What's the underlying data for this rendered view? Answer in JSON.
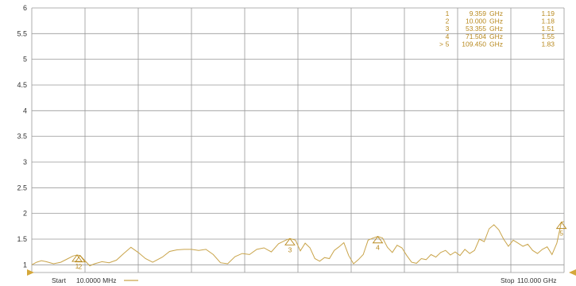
{
  "theme": {
    "trace_color": "#c9a44a",
    "grid_color": "#999999",
    "marker_text_color": "#b8891e",
    "bg": "#ffffff"
  },
  "footer": {
    "start_label": "Start",
    "start_value": "10.0000 MHz",
    "stop_label": "Stop",
    "stop_value": "110.000 GHz"
  },
  "marker_table": [
    {
      "active": "",
      "id": "1",
      "freq": "9.359",
      "unit": "GHz",
      "value": "1.19"
    },
    {
      "active": "",
      "id": "2",
      "freq": "10.000",
      "unit": "GHz",
      "value": "1.18"
    },
    {
      "active": "",
      "id": "3",
      "freq": "53.355",
      "unit": "GHz",
      "value": "1.51"
    },
    {
      "active": "",
      "id": "4",
      "freq": "71.504",
      "unit": "GHz",
      "value": "1.55"
    },
    {
      "active": ">",
      "id": "5",
      "freq": "109.450",
      "unit": "GHz",
      "value": "1.83"
    }
  ],
  "chart_data": {
    "type": "line",
    "xlim": [
      0.01,
      110
    ],
    "ylim": [
      0.85,
      6
    ],
    "y_ticks": [
      "6",
      "5.5",
      "5",
      "4.5",
      "4",
      "3.5",
      "3",
      "2.5",
      "2",
      "1.5",
      "1"
    ],
    "y_tick_values": [
      6,
      5.5,
      5,
      4.5,
      4,
      3.5,
      3,
      2.5,
      2,
      1.5,
      1
    ],
    "x_divisions": 10,
    "grid": true,
    "markers": [
      {
        "label": "1",
        "x": 9.359,
        "y": 1.19
      },
      {
        "label": "2",
        "x": 10.0,
        "y": 1.18
      },
      {
        "label": "3",
        "x": 53.355,
        "y": 1.51
      },
      {
        "label": "4",
        "x": 71.504,
        "y": 1.55
      },
      {
        "label": "5",
        "x": 109.45,
        "y": 1.83
      }
    ],
    "series": [
      {
        "x": [
          0.01,
          1.0,
          2.0,
          3.0,
          4.5,
          6.0,
          7.5,
          8.5,
          9.36,
          10.0,
          11.0,
          12.0,
          13.0,
          14.5,
          16.0,
          17.5,
          19.0,
          20.5,
          22.0,
          23.5,
          25.0,
          27.0,
          28.5,
          30.0,
          31.5,
          33.0,
          34.5,
          36.0,
          37.5,
          39.0,
          40.5,
          42.0,
          43.5,
          45.0,
          46.5,
          48.0,
          49.5,
          51.0,
          52.5,
          53.36,
          54.5,
          55.5,
          56.5,
          57.5,
          58.5,
          59.5,
          60.5,
          61.5,
          62.5,
          63.5,
          64.5,
          65.5,
          66.5,
          67.5,
          68.5,
          69.5,
          70.5,
          71.5,
          72.5,
          73.5,
          74.5,
          75.5,
          76.5,
          77.5,
          78.5,
          79.5,
          80.5,
          81.5,
          82.5,
          83.5,
          84.5,
          85.5,
          86.5,
          87.5,
          88.5,
          89.5,
          90.5,
          91.5,
          92.5,
          93.5,
          94.5,
          95.5,
          96.5,
          97.5,
          98.5,
          99.5,
          100.5,
          101.5,
          102.5,
          103.5,
          104.5,
          105.5,
          106.5,
          107.5,
          108.5,
          109.45,
          110.0
        ],
        "values": [
          1.0,
          1.05,
          1.08,
          1.06,
          1.02,
          1.05,
          1.12,
          1.17,
          1.19,
          1.18,
          1.08,
          0.98,
          1.02,
          1.06,
          1.04,
          1.09,
          1.22,
          1.34,
          1.24,
          1.12,
          1.05,
          1.15,
          1.26,
          1.29,
          1.3,
          1.3,
          1.28,
          1.3,
          1.2,
          1.04,
          1.02,
          1.16,
          1.22,
          1.2,
          1.3,
          1.33,
          1.25,
          1.41,
          1.48,
          1.51,
          1.48,
          1.27,
          1.42,
          1.33,
          1.12,
          1.07,
          1.14,
          1.12,
          1.28,
          1.35,
          1.43,
          1.18,
          1.02,
          1.1,
          1.2,
          1.48,
          1.52,
          1.55,
          1.52,
          1.34,
          1.24,
          1.38,
          1.33,
          1.18,
          1.05,
          1.03,
          1.12,
          1.1,
          1.2,
          1.15,
          1.24,
          1.28,
          1.19,
          1.25,
          1.18,
          1.3,
          1.22,
          1.28,
          1.5,
          1.45,
          1.7,
          1.78,
          1.68,
          1.5,
          1.36,
          1.48,
          1.42,
          1.36,
          1.4,
          1.28,
          1.22,
          1.3,
          1.35,
          1.2,
          1.42,
          1.83,
          1.84
        ]
      }
    ]
  }
}
